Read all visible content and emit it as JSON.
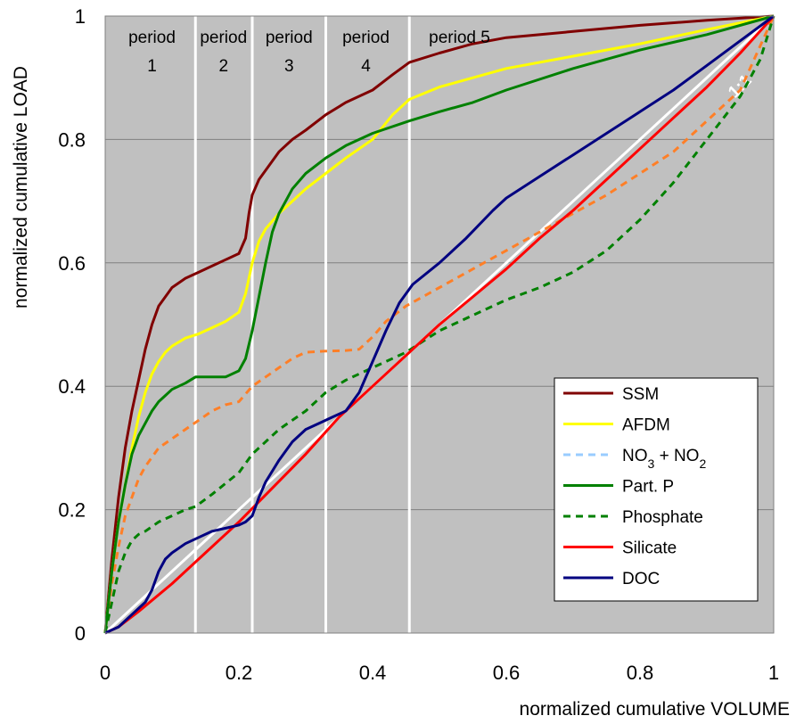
{
  "chart_data": {
    "type": "line",
    "xlabel": "normalized cumulative  VOLUME",
    "ylabel": "normalized cumulative LOAD",
    "xlim": [
      0,
      1
    ],
    "ylim": [
      0,
      1
    ],
    "x_ticks": [
      "0",
      "0.2",
      "0.4",
      "0.6",
      "0.8",
      "1"
    ],
    "y_ticks": [
      "0",
      "0.2",
      "0.4",
      "0.6",
      "0.8",
      "1"
    ],
    "grid": "horizontal",
    "background": "#c0c0c0",
    "legend_position": "bottom-right",
    "reference_line": {
      "label": "1:1",
      "color": "#ffffff"
    },
    "period_boundaries": [
      0.135,
      0.22,
      0.33,
      0.455
    ],
    "periods": [
      {
        "line1": "period",
        "line2": "1",
        "x": 0.07
      },
      {
        "line1": "period",
        "line2": "2",
        "x": 0.177
      },
      {
        "line1": "period",
        "line2": "3",
        "x": 0.275
      },
      {
        "line1": "period",
        "line2": "4",
        "x": 0.39
      },
      {
        "line1": "period 5",
        "line2": "",
        "x": 0.53
      }
    ],
    "series": [
      {
        "name": "SSM",
        "color": "#800000",
        "dash": "solid",
        "x": [
          0,
          0.01,
          0.02,
          0.03,
          0.04,
          0.05,
          0.06,
          0.07,
          0.08,
          0.09,
          0.1,
          0.12,
          0.14,
          0.16,
          0.18,
          0.2,
          0.21,
          0.215,
          0.22,
          0.23,
          0.24,
          0.26,
          0.28,
          0.3,
          0.33,
          0.36,
          0.4,
          0.43,
          0.455,
          0.5,
          0.55,
          0.6,
          0.7,
          0.8,
          0.9,
          1
        ],
        "y": [
          0,
          0.12,
          0.22,
          0.3,
          0.36,
          0.41,
          0.46,
          0.5,
          0.53,
          0.545,
          0.56,
          0.575,
          0.585,
          0.595,
          0.605,
          0.615,
          0.64,
          0.68,
          0.71,
          0.735,
          0.75,
          0.78,
          0.8,
          0.815,
          0.84,
          0.86,
          0.88,
          0.905,
          0.925,
          0.94,
          0.955,
          0.965,
          0.975,
          0.985,
          0.993,
          1
        ]
      },
      {
        "name": "AFDM",
        "color": "#ffff00",
        "dash": "solid",
        "x": [
          0,
          0.01,
          0.02,
          0.03,
          0.04,
          0.05,
          0.06,
          0.07,
          0.08,
          0.09,
          0.1,
          0.12,
          0.14,
          0.16,
          0.18,
          0.2,
          0.21,
          0.22,
          0.23,
          0.24,
          0.26,
          0.28,
          0.3,
          0.33,
          0.36,
          0.4,
          0.43,
          0.455,
          0.5,
          0.55,
          0.6,
          0.7,
          0.8,
          0.9,
          1
        ],
        "y": [
          0,
          0.1,
          0.18,
          0.24,
          0.3,
          0.35,
          0.39,
          0.42,
          0.44,
          0.455,
          0.465,
          0.478,
          0.485,
          0.495,
          0.505,
          0.52,
          0.55,
          0.6,
          0.635,
          0.655,
          0.68,
          0.7,
          0.72,
          0.745,
          0.77,
          0.8,
          0.84,
          0.865,
          0.885,
          0.9,
          0.915,
          0.935,
          0.955,
          0.978,
          1
        ]
      },
      {
        "name": "NO₃ + NO₂",
        "color": "#ff7f27",
        "dash": "dash",
        "x": [
          0,
          0.01,
          0.02,
          0.03,
          0.04,
          0.05,
          0.06,
          0.07,
          0.08,
          0.1,
          0.12,
          0.14,
          0.16,
          0.18,
          0.2,
          0.22,
          0.24,
          0.26,
          0.28,
          0.3,
          0.33,
          0.36,
          0.38,
          0.4,
          0.42,
          0.45,
          0.5,
          0.55,
          0.6,
          0.65,
          0.7,
          0.75,
          0.8,
          0.85,
          0.9,
          0.95,
          1
        ],
        "y": [
          0,
          0.08,
          0.14,
          0.19,
          0.22,
          0.25,
          0.27,
          0.285,
          0.3,
          0.315,
          0.33,
          0.345,
          0.36,
          0.37,
          0.375,
          0.4,
          0.415,
          0.43,
          0.445,
          0.455,
          0.457,
          0.458,
          0.46,
          0.48,
          0.505,
          0.53,
          0.56,
          0.59,
          0.62,
          0.65,
          0.68,
          0.71,
          0.745,
          0.78,
          0.83,
          0.88,
          1
        ]
      },
      {
        "name": "Part. P",
        "color": "#008000",
        "dash": "solid",
        "x": [
          0,
          0.01,
          0.02,
          0.03,
          0.04,
          0.05,
          0.06,
          0.07,
          0.08,
          0.09,
          0.1,
          0.12,
          0.135,
          0.15,
          0.18,
          0.2,
          0.21,
          0.22,
          0.23,
          0.24,
          0.25,
          0.26,
          0.28,
          0.3,
          0.33,
          0.36,
          0.4,
          0.455,
          0.5,
          0.55,
          0.6,
          0.7,
          0.8,
          0.9,
          1
        ],
        "y": [
          0,
          0.1,
          0.18,
          0.24,
          0.29,
          0.32,
          0.34,
          0.36,
          0.375,
          0.385,
          0.395,
          0.405,
          0.415,
          0.415,
          0.415,
          0.425,
          0.445,
          0.49,
          0.545,
          0.6,
          0.65,
          0.68,
          0.72,
          0.745,
          0.77,
          0.79,
          0.81,
          0.83,
          0.845,
          0.86,
          0.88,
          0.915,
          0.945,
          0.97,
          1
        ]
      },
      {
        "name": "Phosphate",
        "color": "#008000",
        "dash": "dash",
        "x": [
          0,
          0.01,
          0.02,
          0.03,
          0.04,
          0.05,
          0.06,
          0.08,
          0.1,
          0.12,
          0.135,
          0.16,
          0.2,
          0.22,
          0.26,
          0.3,
          0.33,
          0.36,
          0.4,
          0.45,
          0.5,
          0.55,
          0.6,
          0.65,
          0.7,
          0.75,
          0.8,
          0.85,
          0.9,
          0.95,
          0.98,
          1
        ],
        "y": [
          0,
          0.05,
          0.1,
          0.13,
          0.15,
          0.16,
          0.165,
          0.18,
          0.19,
          0.2,
          0.205,
          0.225,
          0.26,
          0.29,
          0.33,
          0.36,
          0.39,
          0.41,
          0.43,
          0.455,
          0.49,
          0.515,
          0.54,
          0.56,
          0.585,
          0.62,
          0.67,
          0.73,
          0.8,
          0.87,
          0.93,
          1
        ]
      },
      {
        "name": "Silicate",
        "color": "#ff0000",
        "dash": "solid",
        "x": [
          0,
          0.02,
          0.05,
          0.1,
          0.15,
          0.2,
          0.25,
          0.3,
          0.35,
          0.4,
          0.45,
          0.5,
          0.55,
          0.6,
          0.65,
          0.7,
          0.75,
          0.8,
          0.85,
          0.9,
          0.95,
          1
        ],
        "y": [
          0,
          0.01,
          0.035,
          0.08,
          0.13,
          0.18,
          0.235,
          0.29,
          0.35,
          0.4,
          0.45,
          0.5,
          0.545,
          0.59,
          0.64,
          0.685,
          0.735,
          0.785,
          0.835,
          0.885,
          0.94,
          1
        ]
      },
      {
        "name": "DOC",
        "color": "#000080",
        "dash": "solid",
        "x": [
          0,
          0.02,
          0.04,
          0.06,
          0.07,
          0.08,
          0.09,
          0.1,
          0.12,
          0.14,
          0.16,
          0.18,
          0.2,
          0.21,
          0.22,
          0.23,
          0.24,
          0.26,
          0.28,
          0.3,
          0.32,
          0.34,
          0.36,
          0.37,
          0.38,
          0.4,
          0.42,
          0.44,
          0.46,
          0.5,
          0.54,
          0.58,
          0.6,
          0.65,
          0.7,
          0.75,
          0.8,
          0.85,
          0.9,
          0.95,
          1
        ],
        "y": [
          0,
          0.01,
          0.03,
          0.05,
          0.07,
          0.1,
          0.12,
          0.13,
          0.145,
          0.155,
          0.165,
          0.17,
          0.175,
          0.18,
          0.19,
          0.22,
          0.245,
          0.28,
          0.31,
          0.33,
          0.34,
          0.35,
          0.36,
          0.375,
          0.39,
          0.44,
          0.49,
          0.535,
          0.565,
          0.6,
          0.64,
          0.685,
          0.705,
          0.74,
          0.775,
          0.81,
          0.845,
          0.88,
          0.92,
          0.96,
          1
        ]
      }
    ]
  }
}
